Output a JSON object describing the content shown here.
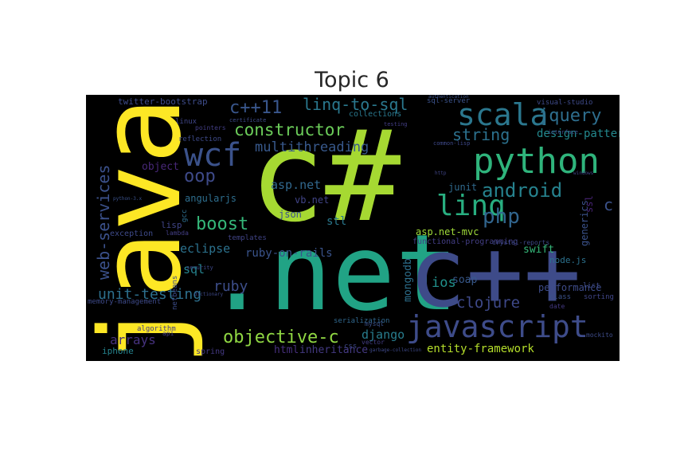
{
  "title": "Topic 6",
  "words": [
    {
      "text": "c#",
      "color": "#a6d932"
    },
    {
      "text": ".net",
      "color": "#21a385"
    },
    {
      "text": "java",
      "color": "#fde725"
    },
    {
      "text": "c++",
      "color": "#3e4b89"
    },
    {
      "text": "javascript",
      "color": "#3e4c8a"
    },
    {
      "text": "python",
      "color": "#2fb47c"
    },
    {
      "text": "scala",
      "color": "#2b778e"
    },
    {
      "text": "linq",
      "color": "#28ae80"
    },
    {
      "text": "php",
      "color": "#31658e"
    },
    {
      "text": "wcf",
      "color": "#3b528b"
    },
    {
      "text": "android",
      "color": "#26828e"
    },
    {
      "text": "jquery",
      "color": "#2e6e8e"
    },
    {
      "text": "constructor",
      "color": "#6ccd5a"
    },
    {
      "text": "linq-to-sql",
      "color": "#2a788e"
    },
    {
      "text": "c++11",
      "color": "#39568c"
    },
    {
      "text": "oop",
      "color": "#3e4a89"
    },
    {
      "text": "boost",
      "color": "#35b779"
    },
    {
      "text": "web-services",
      "color": "#3b518b"
    },
    {
      "text": "objective-c",
      "color": "#90d743"
    },
    {
      "text": "string",
      "color": "#2c718e"
    },
    {
      "text": "multithreading",
      "color": "#38598c"
    },
    {
      "text": "design-patterns",
      "color": "#23898e"
    },
    {
      "text": "unit-testing",
      "color": "#2d708e"
    },
    {
      "text": "ruby",
      "color": "#3d4e8a"
    },
    {
      "text": "clojure",
      "color": "#3e4989"
    },
    {
      "text": "arrays",
      "color": "#46327e"
    },
    {
      "text": "entity-framework",
      "color": "#b5de2b"
    },
    {
      "text": "django",
      "color": "#287d8e"
    },
    {
      "text": "ios",
      "color": "#21918c"
    },
    {
      "text": "sql",
      "color": "#25838e"
    },
    {
      "text": "eclipse",
      "color": "#2c728e"
    },
    {
      "text": "ruby-on-rails",
      "color": "#3a548c"
    },
    {
      "text": "mongodb",
      "color": "#2d708e"
    },
    {
      "text": "asp.net",
      "color": "#31688e"
    },
    {
      "text": "asp.net-mvc",
      "color": "#a0da39"
    },
    {
      "text": "stl",
      "color": "#2a788e"
    },
    {
      "text": "vb.net",
      "color": "#414487"
    },
    {
      "text": "json",
      "color": "#3b528b"
    },
    {
      "text": "html",
      "color": "#472f7d"
    },
    {
      "text": "inheritance",
      "color": "#443a83"
    },
    {
      "text": "generics",
      "color": "#3b528b"
    },
    {
      "text": "swift",
      "color": "#35b779"
    },
    {
      "text": "soap",
      "color": "#38598c"
    },
    {
      "text": "performance",
      "color": "#3e4c8a"
    },
    {
      "text": "object",
      "color": "#482878"
    },
    {
      "text": "angularjs",
      "color": "#2e6e8e"
    },
    {
      "text": "junit",
      "color": "#306a8e"
    },
    {
      "text": "twitter-bootstrap",
      "color": "#3e4c8a"
    },
    {
      "text": "collections",
      "color": "#2a788e"
    },
    {
      "text": "lisp",
      "color": "#404588"
    },
    {
      "text": "templates",
      "color": "#414487"
    },
    {
      "text": "iphone",
      "color": "#25838e"
    },
    {
      "text": "spring",
      "color": "#443983"
    },
    {
      "text": "sql-server",
      "color": "#3b528b"
    },
    {
      "text": "visual-studio",
      "color": "#3e4a89"
    },
    {
      "text": "node.js",
      "color": "#2c728e"
    },
    {
      "text": "functional-programming",
      "color": "#433e85"
    },
    {
      "text": "crystal-reports",
      "color": "#3e4989"
    },
    {
      "text": "exception",
      "color": "#3e4a89"
    },
    {
      "text": "lambda",
      "color": "#433e85"
    },
    {
      "text": "memory-management",
      "color": "#3e4a89"
    },
    {
      "text": "algorithm",
      "color": "#433e85"
    },
    {
      "text": "netbeans",
      "color": "#3d4d8a"
    },
    {
      "text": "linux",
      "color": "#404688"
    },
    {
      "text": "reflection",
      "color": "#3e4a89"
    },
    {
      "text": "pointers",
      "color": "#433e85"
    },
    {
      "text": "serialization",
      "color": "#31688e"
    },
    {
      "text": "sorting",
      "color": "#404688"
    },
    {
      "text": "mysql",
      "color": "#3b528b"
    },
    {
      "text": "gcc",
      "color": "#2e6e8e"
    },
    {
      "text": "date",
      "color": "#443983"
    },
    {
      "text": "class",
      "color": "#3b528b"
    },
    {
      "text": "list",
      "color": "#3e4c8a"
    },
    {
      "text": "ssl",
      "color": "#482475"
    },
    {
      "text": "certificate",
      "color": "#3e4c8a"
    },
    {
      "text": "testing",
      "color": "#433e85"
    },
    {
      "text": "authentication",
      "color": "#3b528b"
    },
    {
      "text": "interface",
      "color": "#3e4c8a"
    },
    {
      "text": "security",
      "color": "#3e4989"
    },
    {
      "text": "mockito",
      "color": "#3e4c8a"
    },
    {
      "text": "python-3.x",
      "color": "#3b528b"
    },
    {
      "text": "common-lisp",
      "color": "#3e4989"
    },
    {
      "text": "vector",
      "color": "#433e85"
    },
    {
      "text": "garbage-collection",
      "color": "#3e4989"
    },
    {
      "text": "http",
      "color": "#404688"
    },
    {
      "text": "windows",
      "color": "#414487"
    },
    {
      "text": "c",
      "color": "#3b528b"
    },
    {
      "text": "css",
      "color": "#3e4989"
    },
    {
      "text": "api",
      "color": "#433e85"
    },
    {
      "text": "dictionary",
      "color": "#3e4989"
    }
  ]
}
